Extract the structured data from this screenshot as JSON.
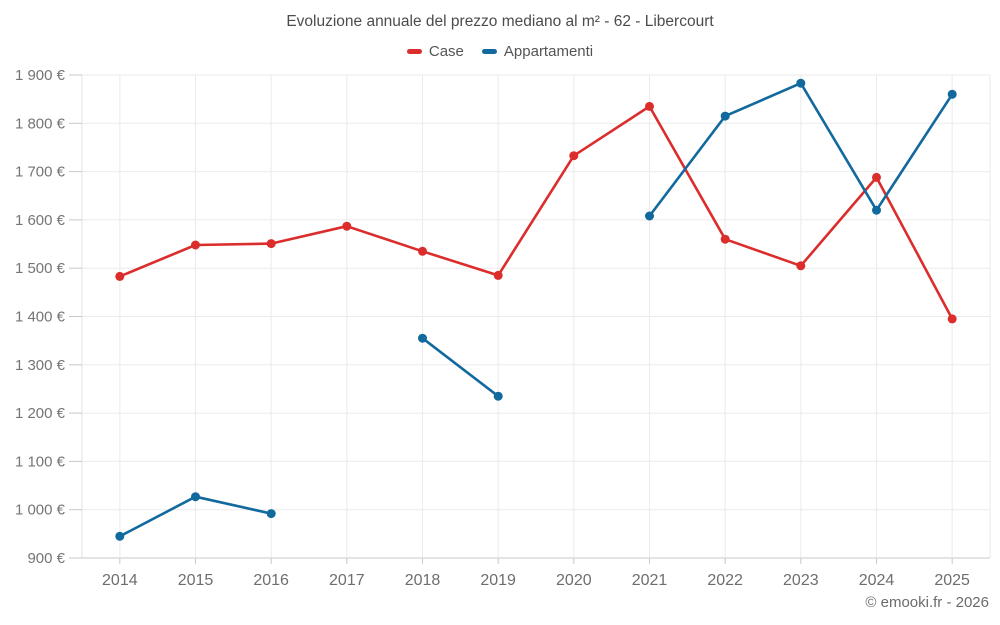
{
  "title": "Evoluzione annuale del prezzo mediano al m² - 62 - Libercourt",
  "legend": [
    {
      "label": "Case",
      "color": "#dc2d2d"
    },
    {
      "label": "Appartamenti",
      "color": "#12699e"
    }
  ],
  "footer": "© emooki.fr - 2026",
  "chart_data": {
    "type": "line",
    "title": "Evoluzione annuale del prezzo mediano al m² - 62 - Libercourt",
    "categories": [
      "2014",
      "2015",
      "2016",
      "2017",
      "2018",
      "2019",
      "2020",
      "2021",
      "2022",
      "2023",
      "2024",
      "2025"
    ],
    "series": [
      {
        "name": "Case",
        "color": "#dc2d2d",
        "values": [
          1483,
          1548,
          1551,
          1587,
          1535,
          1485,
          1733,
          1835,
          1560,
          1505,
          1688,
          1395
        ]
      },
      {
        "name": "Appartamenti",
        "color": "#12699e",
        "values": [
          945,
          1027,
          992,
          null,
          1355,
          1235,
          null,
          1608,
          1815,
          1883,
          1620,
          1860
        ]
      }
    ],
    "xlabel": "",
    "ylabel": "",
    "ylim": [
      900,
      1900
    ],
    "ytick_step": 100,
    "yticks": [
      {
        "value": 900,
        "label": "900 €"
      },
      {
        "value": 1000,
        "label": "1 000 €"
      },
      {
        "value": 1100,
        "label": "1 100 €"
      },
      {
        "value": 1200,
        "label": "1 200 €"
      },
      {
        "value": 1300,
        "label": "1 300 €"
      },
      {
        "value": 1400,
        "label": "1 400 €"
      },
      {
        "value": 1500,
        "label": "1 500 €"
      },
      {
        "value": 1600,
        "label": "1 600 €"
      },
      {
        "value": 1700,
        "label": "1 700 €"
      },
      {
        "value": 1800,
        "label": "1 800 €"
      },
      {
        "value": 1900,
        "label": "1 900 €"
      }
    ],
    "grid": true,
    "legend_position": "top",
    "currency": "€"
  }
}
